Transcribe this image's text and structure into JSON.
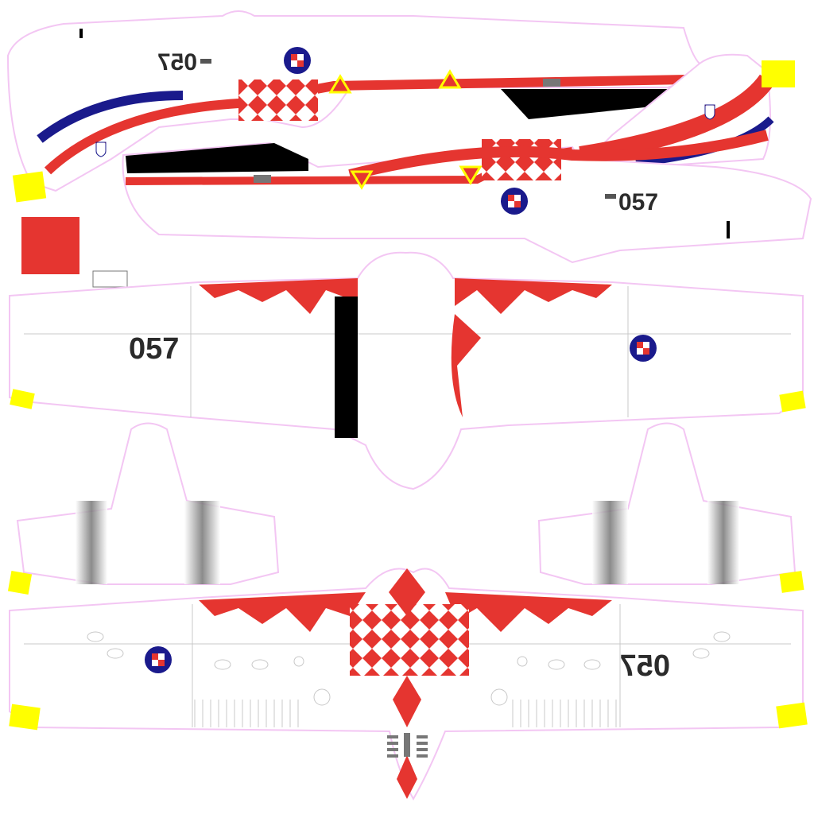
{
  "livery": {
    "serial": "057",
    "colors": {
      "red": "#e53530",
      "navy": "#1a1a8c",
      "yellow": "#ffff00",
      "black": "#000000",
      "white": "#ffffff",
      "panel_line": "#c8c8c8",
      "outline": "#f3c6f3"
    },
    "icons": [
      "roundel-icon",
      "croatian-shield-icon",
      "warning-triangle-icon"
    ]
  }
}
